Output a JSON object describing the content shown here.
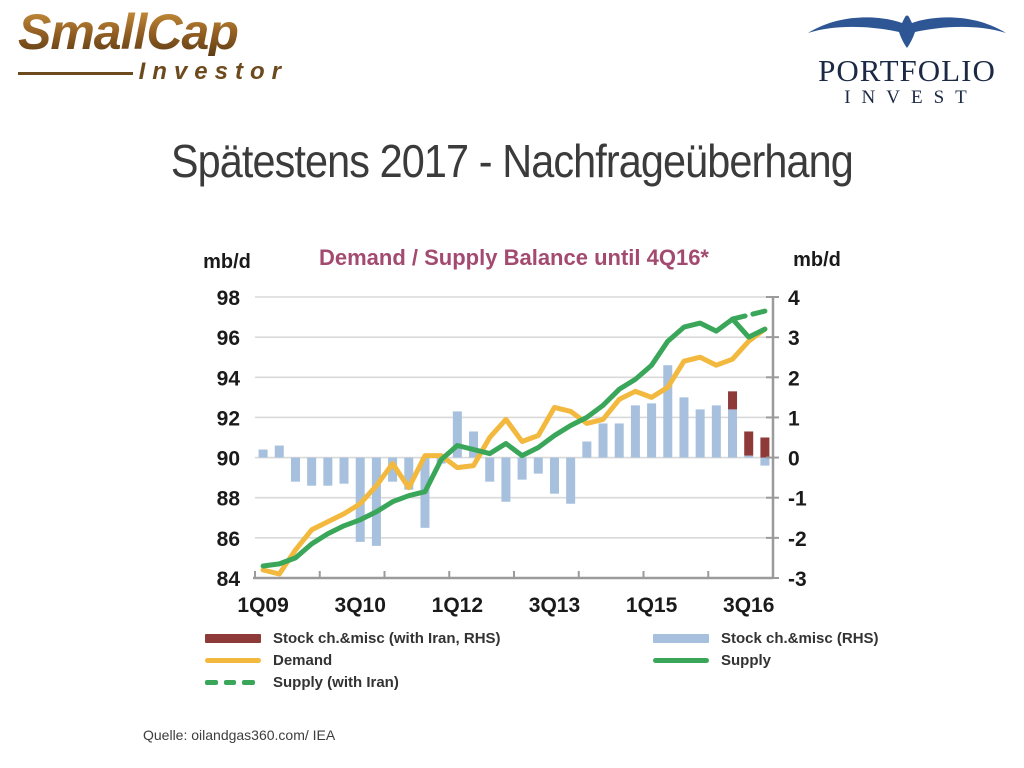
{
  "logos": {
    "smallcap": {
      "main": "SmallCap",
      "sub": "Investor"
    },
    "portfolio": {
      "main": "PORTFOLIO",
      "sub": "INVEST",
      "bird_color": "#2e5695"
    }
  },
  "slide_title": "Spätestens 2017 - Nachfrageüberhang",
  "source_line": "Quelle: oilandgas360.com/ IEA",
  "chart_data": {
    "type": "combo",
    "title": "Demand / Supply Balance until 4Q16*",
    "title_color": "#a34a70",
    "grid": true,
    "left_axis": {
      "label": "mb/d",
      "min": 84,
      "max": 98,
      "ticks": [
        84,
        86,
        88,
        90,
        92,
        94,
        96,
        98
      ]
    },
    "right_axis": {
      "label": "mb/d",
      "min": -3,
      "max": 4,
      "ticks": [
        -3,
        -2,
        -1,
        0,
        1,
        2,
        3,
        4
      ]
    },
    "categories": [
      "1Q09",
      "2Q09",
      "3Q09",
      "4Q09",
      "1Q10",
      "2Q10",
      "3Q10",
      "4Q10",
      "1Q11",
      "2Q11",
      "3Q11",
      "4Q11",
      "1Q12",
      "2Q12",
      "3Q12",
      "4Q12",
      "1Q13",
      "2Q13",
      "3Q13",
      "4Q13",
      "1Q14",
      "2Q14",
      "3Q14",
      "4Q14",
      "1Q15",
      "2Q15",
      "3Q15",
      "4Q15",
      "1Q16",
      "2Q16",
      "3Q16",
      "4Q16"
    ],
    "x_tick_labels": [
      "1Q09",
      "3Q10",
      "1Q12",
      "3Q13",
      "1Q15",
      "3Q16"
    ],
    "x_tick_indices": [
      0,
      6,
      12,
      18,
      24,
      30
    ],
    "series": [
      {
        "name": "Stock ch.&misc (RHS)",
        "type": "bar",
        "axis": "right",
        "color": "#a6c0dd",
        "values": [
          0.2,
          0.3,
          -0.6,
          -0.7,
          -0.7,
          -0.65,
          -2.1,
          -2.2,
          -0.6,
          -0.8,
          -1.75,
          -0.15,
          1.15,
          0.65,
          -0.6,
          -1.1,
          -0.55,
          -0.4,
          -0.9,
          -1.15,
          0.4,
          0.85,
          0.85,
          1.3,
          1.35,
          2.3,
          1.5,
          1.2,
          1.3,
          1.2,
          0.05,
          -0.2
        ]
      },
      {
        "name": "Stock ch.&misc (with Iran, RHS)",
        "type": "bar",
        "axis": "right",
        "color": "#8e3a39",
        "stacked_on_positive": true,
        "values": [
          0,
          0,
          0,
          0,
          0,
          0,
          0,
          0,
          0,
          0,
          0,
          0,
          0,
          0,
          0,
          0,
          0,
          0,
          0,
          0,
          0,
          0,
          0,
          0,
          0,
          0,
          0,
          0,
          0,
          0.45,
          0.6,
          0.5
        ]
      },
      {
        "name": "Demand",
        "type": "line",
        "axis": "left",
        "color": "#f2b93e",
        "values": [
          84.4,
          84.2,
          85.4,
          86.4,
          86.8,
          87.2,
          87.7,
          88.6,
          89.7,
          88.5,
          90.1,
          90.1,
          89.5,
          89.6,
          91.0,
          91.9,
          90.8,
          91.1,
          92.5,
          92.3,
          91.7,
          91.9,
          92.9,
          93.3,
          93.0,
          93.5,
          94.8,
          95.0,
          94.6,
          94.9,
          95.8,
          96.4
        ]
      },
      {
        "name": "Supply",
        "type": "line",
        "axis": "left",
        "color": "#3aa65a",
        "values": [
          84.6,
          84.7,
          85.0,
          85.7,
          86.2,
          86.6,
          86.9,
          87.3,
          87.8,
          88.1,
          88.3,
          89.9,
          90.6,
          90.4,
          90.2,
          90.7,
          90.1,
          90.5,
          91.1,
          91.6,
          92.0,
          92.6,
          93.4,
          93.9,
          94.6,
          95.8,
          96.5,
          96.7,
          96.3,
          96.9,
          96.0,
          96.4
        ]
      },
      {
        "name": "Supply (with Iran)",
        "type": "line",
        "dashed": true,
        "axis": "left",
        "color": "#3aa65a",
        "values": [
          null,
          null,
          null,
          null,
          null,
          null,
          null,
          null,
          null,
          null,
          null,
          null,
          null,
          null,
          null,
          null,
          null,
          null,
          null,
          null,
          null,
          null,
          null,
          null,
          null,
          null,
          null,
          null,
          null,
          96.9,
          97.1,
          97.3
        ]
      }
    ],
    "legend": [
      {
        "label": "Stock ch.&misc (with Iran, RHS)",
        "style": "bar",
        "color": "#8e3a39"
      },
      {
        "label": "Stock ch.&misc (RHS)",
        "style": "bar",
        "color": "#a6c0dd"
      },
      {
        "label": "Demand",
        "style": "line",
        "color": "#f2b93e"
      },
      {
        "label": "Supply",
        "style": "line",
        "color": "#3aa65a"
      },
      {
        "label": "Supply (with Iran)",
        "style": "dashed",
        "color": "#3aa65a"
      }
    ],
    "legend_position": "bottom"
  }
}
